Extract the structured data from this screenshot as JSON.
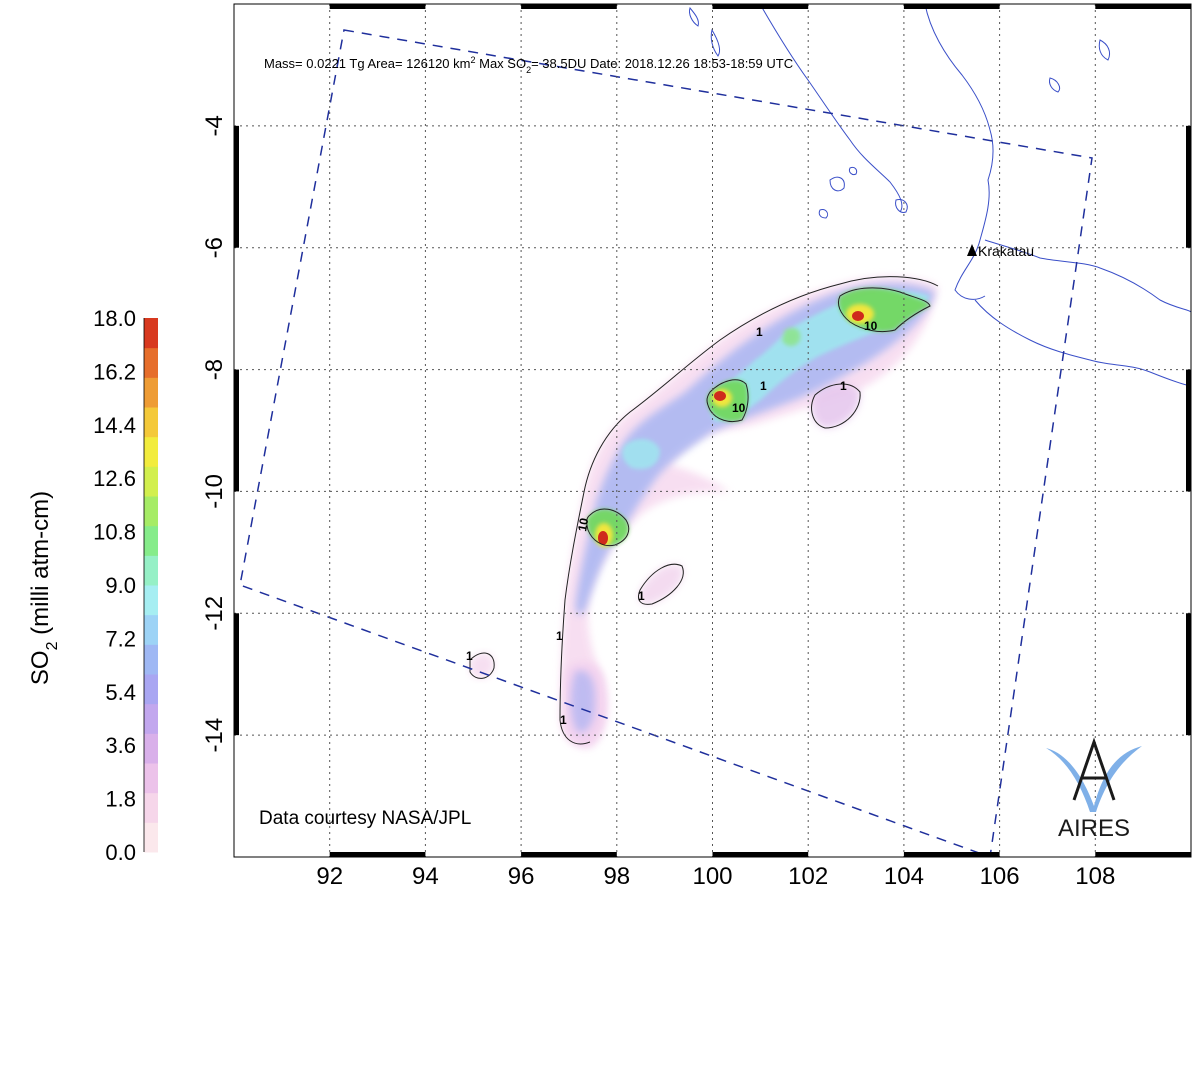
{
  "header": {
    "mass": "Mass= 0.0221 Tg",
    "area_prefix": "Area=  126120 km",
    "area_sup": "2",
    "max_prefix": "Max SO",
    "max_sub": "2",
    "max_suffix": "= 38.5DU",
    "date": "Date: 2018.12.26  18:53-18:59 UTC"
  },
  "colorbar": {
    "title_prefix": "SO",
    "title_sub": "2",
    "title_suffix": " (milli atm-cm)",
    "labels": [
      "0.0",
      "1.8",
      "3.6",
      "5.4",
      "7.2",
      "9.0",
      "10.8",
      "12.6",
      "14.4",
      "16.2",
      "18.0"
    ],
    "min": 0,
    "max": 18,
    "colors": [
      "#fbe8ec",
      "#f6d6ea",
      "#ecc2ea",
      "#d9b0ea",
      "#c2a7ee",
      "#a9a6f2",
      "#9fb8f4",
      "#9dd3f6",
      "#a6eef2",
      "#96f0c6",
      "#86ec8a",
      "#a6ec66",
      "#d2ef4e",
      "#f2ec3e",
      "#f4c93a",
      "#ee9c35",
      "#e66e2b",
      "#d8391f"
    ]
  },
  "axes": {
    "x_ticks": [
      "92",
      "94",
      "96",
      "98",
      "100",
      "102",
      "104",
      "106",
      "108"
    ],
    "y_ticks": [
      "-4",
      "-6",
      "-8",
      "-10",
      "-12",
      "-14"
    ],
    "lon_range": [
      90,
      110
    ],
    "lat_range": [
      -16,
      -2
    ]
  },
  "map": {
    "volcano_label": "Krakatau",
    "volcano_lon": 105.4,
    "volcano_lat": -6.1,
    "contour_labels": [
      "1",
      "10"
    ],
    "plume_colors": {
      "low": "#f7dbf0",
      "mid": "#a8b6f2",
      "high": "#9fe6ef",
      "peak_green": "#72d860",
      "peak_yellow": "#f1e63e",
      "peak_red": "#cf2a1c"
    }
  },
  "credit": "Data courtesy NASA/JPL",
  "logo": {
    "text": "AIRES",
    "color": "#7fb0e8"
  }
}
